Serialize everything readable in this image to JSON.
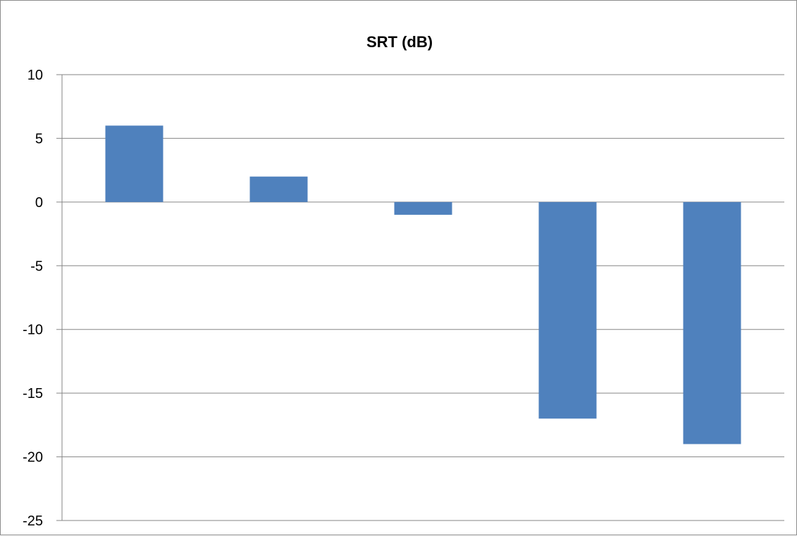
{
  "chart_data": {
    "type": "bar",
    "title": "SRT (dB)",
    "xlabel": "",
    "ylabel": "",
    "categories": [
      "",
      "",
      "",
      "",
      ""
    ],
    "values": [
      6,
      2,
      -1,
      -17,
      -19
    ],
    "ylim": [
      -25,
      10
    ],
    "yticks": [
      10,
      5,
      0,
      -5,
      -10,
      -15,
      -20,
      -25
    ],
    "grid": true,
    "legend": "none",
    "bar_color": "#4f81bd",
    "grid_color": "#868686"
  }
}
